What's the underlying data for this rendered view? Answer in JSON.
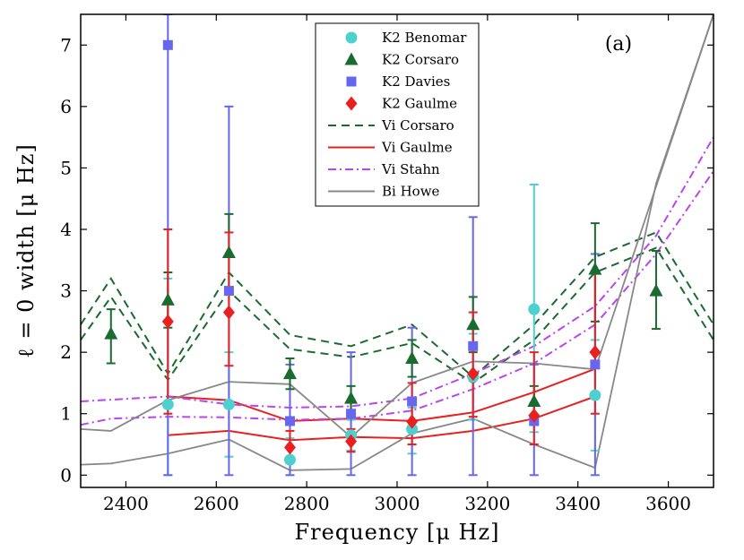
{
  "chart_data": {
    "type": "scatter",
    "panel_label": "(a)",
    "xlabel": "Frequency [μ Hz]",
    "ylabel": "ℓ = 0 width [μ Hz]",
    "xlim": [
      2300,
      3700
    ],
    "ylim": [
      -0.2,
      7.5
    ],
    "xticks": [
      2400,
      2600,
      2800,
      3000,
      3200,
      3400,
      3600
    ],
    "yticks": [
      0,
      1,
      2,
      3,
      4,
      5,
      6,
      7
    ],
    "colors": {
      "benomar": "#4dd0d0",
      "corsaro": "#1a6b2f",
      "davies": "#6666ee",
      "gaulme": "#e82020",
      "vi_corsaro": "#1a6b2f",
      "vi_gaulme": "#e82020",
      "vi_stahn": "#bb44ee",
      "bi_howe": "#888888"
    },
    "legend": [
      {
        "key": "benomar",
        "label": "K2 Benomar",
        "kind": "circle"
      },
      {
        "key": "corsaro",
        "label": "K2 Corsaro",
        "kind": "triangle"
      },
      {
        "key": "davies",
        "label": "K2 Davies",
        "kind": "square"
      },
      {
        "key": "gaulme",
        "label": "K2 Gaulme",
        "kind": "diamond"
      },
      {
        "key": "vi_corsaro",
        "label": "Vi Corsaro",
        "kind": "dashed"
      },
      {
        "key": "vi_gaulme",
        "label": "Vi Gaulme",
        "kind": "solid"
      },
      {
        "key": "vi_stahn",
        "label": "Vi Stahn",
        "kind": "dashdot"
      },
      {
        "key": "bi_howe",
        "label": "Bi Howe",
        "kind": "solid"
      }
    ],
    "points": {
      "benomar": [
        {
          "x": 2493,
          "y": 1.15,
          "lo": 0.0,
          "hi": 3.2
        },
        {
          "x": 2628,
          "y": 1.15,
          "lo": 0.3,
          "hi": 2.0
        },
        {
          "x": 2763,
          "y": 0.25,
          "lo": 0.0,
          "hi": 0.6
        },
        {
          "x": 2898,
          "y": 0.65,
          "lo": 0.4,
          "hi": 0.9
        },
        {
          "x": 3033,
          "y": 0.75,
          "lo": 0.35,
          "hi": 1.1
        },
        {
          "x": 3168,
          "y": 1.6,
          "lo": 0.9,
          "hi": 2.3
        },
        {
          "x": 3303,
          "y": 2.7,
          "lo": 0.7,
          "hi": 4.73
        },
        {
          "x": 3438,
          "y": 1.3,
          "lo": 0.4,
          "hi": 2.2
        }
      ],
      "corsaro": [
        {
          "x": 2367,
          "y": 2.3,
          "lo": 1.82,
          "hi": 2.7
        },
        {
          "x": 2493,
          "y": 2.85,
          "lo": 2.4,
          "hi": 3.3
        },
        {
          "x": 2628,
          "y": 3.62,
          "lo": 3.0,
          "hi": 4.25
        },
        {
          "x": 2763,
          "y": 1.65,
          "lo": 1.4,
          "hi": 1.9
        },
        {
          "x": 2898,
          "y": 1.25,
          "lo": 1.05,
          "hi": 1.45
        },
        {
          "x": 3033,
          "y": 1.9,
          "lo": 1.6,
          "hi": 2.2
        },
        {
          "x": 3168,
          "y": 2.45,
          "lo": 2.0,
          "hi": 2.9
        },
        {
          "x": 3303,
          "y": 1.2,
          "lo": 0.95,
          "hi": 1.45
        },
        {
          "x": 3438,
          "y": 3.35,
          "lo": 2.5,
          "hi": 4.1
        },
        {
          "x": 3573,
          "y": 3.0,
          "lo": 2.38,
          "hi": 3.65
        }
      ],
      "davies": [
        {
          "x": 2493,
          "y": 7.0,
          "lo": 0.0,
          "hi": 7.5
        },
        {
          "x": 2628,
          "y": 3.0,
          "lo": 0.0,
          "hi": 6.0
        },
        {
          "x": 2763,
          "y": 0.88,
          "lo": 0.0,
          "hi": 1.8
        },
        {
          "x": 2898,
          "y": 1.0,
          "lo": 0.0,
          "hi": 2.0
        },
        {
          "x": 3033,
          "y": 1.2,
          "lo": 0.0,
          "hi": 2.4
        },
        {
          "x": 3168,
          "y": 2.1,
          "lo": 0.0,
          "hi": 4.2
        },
        {
          "x": 3303,
          "y": 0.88,
          "lo": 0.0,
          "hi": 1.8
        },
        {
          "x": 3438,
          "y": 1.8,
          "lo": 0.0,
          "hi": 3.6
        }
      ],
      "gaulme": [
        {
          "x": 2493,
          "y": 2.5,
          "lo": 1.0,
          "hi": 4.0
        },
        {
          "x": 2628,
          "y": 2.65,
          "lo": 1.78,
          "hi": 3.95
        },
        {
          "x": 2763,
          "y": 0.45,
          "lo": 0.2,
          "hi": 0.72
        },
        {
          "x": 2898,
          "y": 0.55,
          "lo": 0.38,
          "hi": 0.75
        },
        {
          "x": 3033,
          "y": 0.87,
          "lo": 0.5,
          "hi": 1.5
        },
        {
          "x": 3168,
          "y": 1.65,
          "lo": 0.95,
          "hi": 2.65
        },
        {
          "x": 3303,
          "y": 0.97,
          "lo": 0.5,
          "hi": 2.0
        },
        {
          "x": 3438,
          "y": 2.0,
          "lo": 1.0,
          "hi": 3.3
        }
      ]
    },
    "lines": [
      {
        "key": "vi_corsaro",
        "style": "dashed",
        "x": [
          2300,
          2367,
          2493,
          2628,
          2763,
          2898,
          3033,
          3168,
          3303,
          3438,
          3573,
          3700
        ],
        "y": [
          2.45,
          3.2,
          1.65,
          3.3,
          2.28,
          2.1,
          2.45,
          1.6,
          2.45,
          3.55,
          3.95,
          2.45
        ]
      },
      {
        "key": "vi_corsaro",
        "style": "dashed",
        "x": [
          2300,
          2367,
          2493,
          2628,
          2763,
          2898,
          3033,
          3168,
          3303,
          3438,
          3573,
          3700
        ],
        "y": [
          2.2,
          2.9,
          1.55,
          3.0,
          2.05,
          1.92,
          2.15,
          1.5,
          2.2,
          3.3,
          3.7,
          2.2
        ]
      },
      {
        "key": "vi_gaulme",
        "style": "solid",
        "x": [
          2493,
          2628,
          2763,
          2898,
          3033,
          3168,
          3303,
          3438
        ],
        "y": [
          1.28,
          1.22,
          0.88,
          0.92,
          0.88,
          1.02,
          1.35,
          1.73
        ]
      },
      {
        "key": "vi_gaulme",
        "style": "solid",
        "x": [
          2493,
          2628,
          2763,
          2898,
          3033,
          3168,
          3303,
          3438
        ],
        "y": [
          0.65,
          0.72,
          0.57,
          0.62,
          0.6,
          0.72,
          0.92,
          1.28
        ]
      },
      {
        "key": "vi_stahn",
        "style": "dashdot",
        "x": [
          2300,
          2493,
          2628,
          2763,
          2898,
          3033,
          3168,
          3303,
          3438,
          3573,
          3700
        ],
        "y": [
          1.2,
          1.28,
          1.15,
          1.1,
          1.12,
          1.25,
          1.65,
          2.1,
          2.75,
          3.9,
          5.5
        ]
      },
      {
        "key": "vi_stahn",
        "style": "dashdot",
        "x": [
          2300,
          2367,
          2493,
          2628,
          2763,
          2898,
          3033,
          3168,
          3303,
          3438,
          3573,
          3700
        ],
        "y": [
          0.82,
          0.92,
          0.95,
          0.94,
          0.9,
          0.92,
          1.05,
          1.4,
          1.82,
          2.45,
          3.6,
          4.95
        ]
      },
      {
        "key": "bi_howe",
        "style": "solid",
        "x": [
          2300,
          2367,
          2493,
          2628,
          2763,
          2898,
          3033,
          3168,
          3303,
          3438,
          3700
        ],
        "y": [
          0.75,
          0.72,
          1.22,
          1.52,
          1.48,
          0.62,
          1.5,
          1.85,
          1.82,
          1.72,
          7.5
        ]
      },
      {
        "key": "bi_howe",
        "style": "solid",
        "x": [
          2300,
          2367,
          2493,
          2628,
          2763,
          2898,
          3033,
          3168,
          3303,
          3438,
          3573,
          3700
        ],
        "y": [
          0.17,
          0.19,
          0.35,
          0.58,
          0.08,
          0.1,
          0.68,
          0.92,
          0.5,
          0.12,
          4.75,
          7.5
        ]
      }
    ]
  }
}
